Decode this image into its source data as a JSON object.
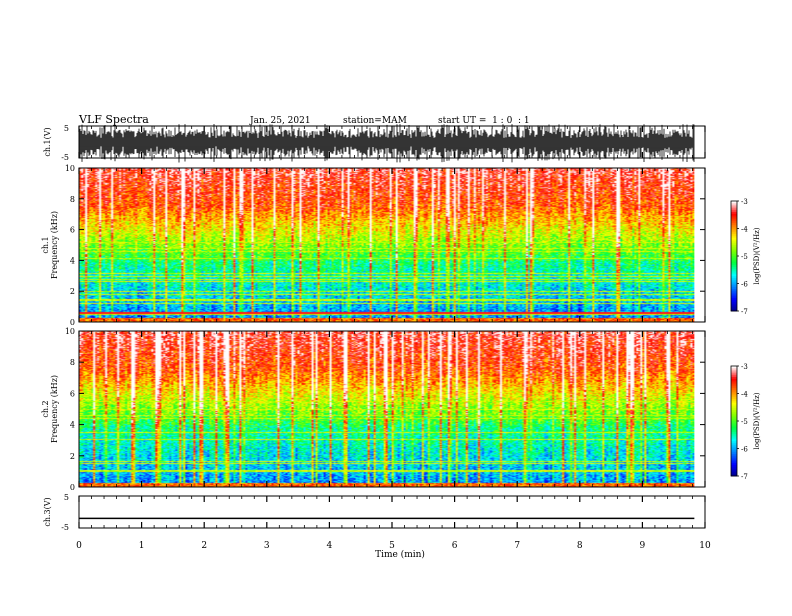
{
  "header": {
    "title": "VLF Spectra",
    "date": "Jan. 25, 2021",
    "station": "station=MAM",
    "start_ut": "start UT =  1 : 0  : 1"
  },
  "colors": {
    "spectrogram_scale": [
      "#000080",
      "#0000ff",
      "#0080ff",
      "#00ffff",
      "#00ff40",
      "#80ff00",
      "#ffff00",
      "#ff8000",
      "#ff0000",
      "#ffffff"
    ],
    "axis": "#000000",
    "background": "#ffffff"
  },
  "chart_data": [
    {
      "type": "line",
      "name": "ch1-waveform",
      "ylabel": "ch.1(V)",
      "ylim": [
        -5,
        5
      ],
      "yticks": [
        5,
        -5
      ],
      "description_values": "dense high-frequency impulsive signal filling most of the range",
      "xlim": [
        0,
        10
      ]
    },
    {
      "type": "heatmap",
      "name": "ch1-spectrogram",
      "ylabel": "ch.1\nFrequency (kHz)",
      "ylim": [
        0,
        10
      ],
      "yticks": [
        0,
        2,
        4,
        6,
        8,
        10
      ],
      "xlim": [
        0,
        10
      ],
      "data_xmax": 9.83,
      "colorbar": {
        "label": "log(PSD)(V²/Hz)",
        "range": [
          -7,
          -3
        ],
        "ticks": [
          -3,
          -4,
          -5,
          -6,
          -7
        ]
      }
    },
    {
      "type": "heatmap",
      "name": "ch2-spectrogram",
      "ylabel": "ch.2\nFrequency (kHz)",
      "ylim": [
        0,
        10
      ],
      "yticks": [
        0,
        2,
        4,
        6,
        8,
        10
      ],
      "xlim": [
        0,
        10
      ],
      "data_xmax": 9.83,
      "colorbar": {
        "label": "log(PSD)(V²/Hz)",
        "range": [
          -7,
          -3
        ],
        "ticks": [
          -3,
          -4,
          -5,
          -6,
          -7
        ]
      }
    },
    {
      "type": "line",
      "name": "ch3-waveform",
      "ylabel": "ch.3(V)",
      "ylim": [
        -5,
        5
      ],
      "yticks": [
        5,
        -5
      ],
      "x": [
        0,
        9.83
      ],
      "y": [
        -2,
        -2
      ],
      "xlim": [
        0,
        10
      ],
      "xlabel": "Time (min)",
      "xticks": [
        0,
        1,
        2,
        3,
        4,
        5,
        6,
        7,
        8,
        9,
        10
      ]
    }
  ]
}
